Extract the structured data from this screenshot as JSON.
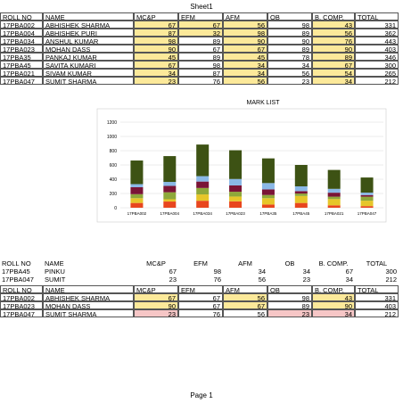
{
  "header": {
    "title": "Sheet1"
  },
  "table1": {
    "columns": [
      "ROLL NO",
      "NAME",
      "MC&P",
      "EFM",
      "AFM",
      "OB",
      "B. COMP.",
      "TOTAL"
    ],
    "rows": [
      [
        "17PBA002",
        "ABHISHEK SHARMA",
        "67",
        "67",
        "56",
        "98",
        "43",
        "331"
      ],
      [
        "17PBA004",
        "ABHISHEK PURI",
        "87",
        "32",
        "98",
        "89",
        "56",
        "362"
      ],
      [
        "17PBA034",
        "ANSHUL KUMAR",
        "98",
        "89",
        "90",
        "90",
        "76",
        "443"
      ],
      [
        "17PBA023",
        "MOHAN DASS",
        "90",
        "67",
        "67",
        "89",
        "90",
        "403"
      ],
      [
        "17PBA35",
        "PANKAJ KUMAR",
        "45",
        "89",
        "45",
        "78",
        "89",
        "346"
      ],
      [
        "17PBA45",
        "SAVITA KUMARI",
        "67",
        "98",
        "34",
        "34",
        "67",
        "300"
      ],
      [
        "17PBA021",
        "SIVAM KUMAR",
        "34",
        "87",
        "34",
        "56",
        "54",
        "265"
      ],
      [
        "17PBA047",
        "SUMIT SHARMA",
        "23",
        "76",
        "56",
        "23",
        "34",
        "212"
      ]
    ]
  },
  "chart_data": {
    "type": "stacked_bar",
    "title": "MARK LIST",
    "categories": [
      "17PBA002",
      "17PBA004",
      "17PBA034",
      "17PBA023",
      "17PBA35",
      "17PBA45",
      "17PBA021",
      "17PBA047"
    ],
    "series": [
      {
        "name": "MC&P",
        "color": "#e8461e",
        "values": [
          67,
          87,
          98,
          90,
          45,
          67,
          34,
          23
        ]
      },
      {
        "name": "EFM",
        "color": "#e6c62a",
        "values": [
          67,
          32,
          89,
          67,
          89,
          98,
          87,
          76
        ]
      },
      {
        "name": "AFM",
        "color": "#8ea83a",
        "values": [
          56,
          98,
          90,
          67,
          45,
          34,
          34,
          56
        ]
      },
      {
        "name": "OB",
        "color": "#7a1436",
        "values": [
          98,
          89,
          90,
          89,
          78,
          34,
          56,
          23
        ]
      },
      {
        "name": "B. COMP.",
        "color": "#8ab8e6",
        "values": [
          43,
          56,
          76,
          90,
          89,
          67,
          54,
          34
        ]
      },
      {
        "name": "TOTAL",
        "color": "#3d5214",
        "values": [
          331,
          362,
          443,
          403,
          346,
          300,
          265,
          212
        ]
      }
    ],
    "ylim": [
      0,
      1200
    ],
    "yticks": [
      0,
      200,
      400,
      600,
      800,
      1000,
      1200
    ],
    "grid": true
  },
  "table2": {
    "columns": [
      "ROLL NO",
      "NAME",
      "MC&P",
      "EFM",
      "AFM",
      "OB",
      "B. COMP.",
      "TOTAL"
    ],
    "rows": [
      [
        "17PBA45",
        "PINKU",
        "67",
        "98",
        "34",
        "34",
        "67",
        "300"
      ],
      [
        "17PBA047",
        "SUMIT",
        "23",
        "76",
        "56",
        "23",
        "34",
        "212"
      ]
    ]
  },
  "table3": {
    "columns": [
      "ROLL NO",
      "NAME",
      "MC&P",
      "EFM",
      "AFM",
      "OB",
      "B. COMP.",
      "TOTAL"
    ],
    "rows": [
      [
        "17PBA002",
        "ABHISHEK SHARMA",
        "67",
        "67",
        "56",
        "98",
        "43",
        "331"
      ],
      [
        "17PBA023",
        "MOHAN DASS",
        "90",
        "67",
        "67",
        "89",
        "90",
        "403"
      ],
      [
        "17PBA047",
        "SUMIT SHARMA",
        "23",
        "76",
        "56",
        "23",
        "34",
        "212"
      ]
    ]
  },
  "footer": {
    "page": "Page 1"
  }
}
